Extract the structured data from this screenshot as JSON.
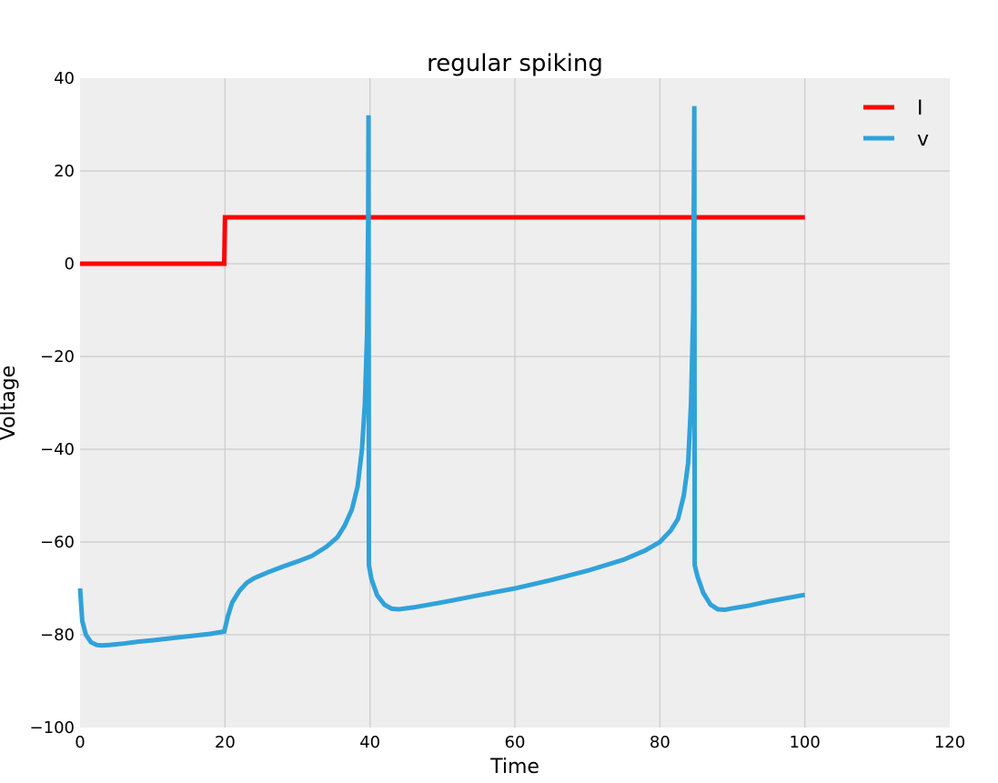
{
  "chart_data": {
    "type": "line",
    "title": "regular spiking",
    "xlabel": "Time",
    "ylabel": "Voltage",
    "xlim": [
      0,
      120
    ],
    "ylim": [
      -100,
      40
    ],
    "xticks": [
      0,
      20,
      40,
      60,
      80,
      100,
      120
    ],
    "yticks": [
      -100,
      -80,
      -60,
      -40,
      -20,
      0,
      20,
      40
    ],
    "xtick_labels": [
      "0",
      "20",
      "40",
      "60",
      "80",
      "100",
      "120"
    ],
    "ytick_labels": [
      "−100",
      "−80",
      "−60",
      "−40",
      "−20",
      "0",
      "20",
      "40"
    ],
    "grid": true,
    "legend_position": "top-right",
    "series": [
      {
        "name": "I",
        "color": "#ff0000",
        "x": [
          0,
          19.9,
          20,
          100
        ],
        "y": [
          0,
          0,
          10,
          10
        ]
      },
      {
        "name": "v",
        "color": "#30a2da",
        "x": [
          0,
          0.3,
          0.8,
          1.5,
          2.3,
          3.0,
          4,
          6,
          8,
          10,
          14,
          18,
          19.9,
          20.4,
          21,
          22,
          23,
          24,
          26,
          28,
          30,
          32,
          34,
          35.5,
          36.5,
          37.5,
          38.3,
          38.9,
          39.3,
          39.6,
          39.75,
          39.8,
          39.85,
          40.2,
          41,
          42,
          43,
          44,
          46,
          50,
          55,
          60,
          65,
          70,
          75,
          78,
          80,
          81.5,
          82.5,
          83.3,
          83.9,
          84.3,
          84.6,
          84.7,
          84.75,
          84.8,
          85.2,
          86,
          87,
          88,
          89,
          90,
          92,
          95,
          100
        ],
        "y": [
          -70,
          -77,
          -80,
          -81.6,
          -82.2,
          -82.3,
          -82.2,
          -81.9,
          -81.5,
          -81.2,
          -80.5,
          -79.8,
          -79.3,
          -76,
          -73,
          -70.5,
          -68.8,
          -67.8,
          -66.5,
          -65.3,
          -64.2,
          -63,
          -61,
          -59,
          -56.5,
          -53,
          -48,
          -40,
          -30,
          -15,
          10,
          32,
          -65,
          -68,
          -71.5,
          -73.5,
          -74.4,
          -74.5,
          -74.1,
          -73,
          -71.5,
          -70,
          -68.2,
          -66.2,
          -63.8,
          -61.8,
          -60,
          -57.5,
          -55,
          -50,
          -43,
          -30,
          -10,
          20,
          34,
          -65,
          -67.5,
          -71,
          -73.5,
          -74.5,
          -74.6,
          -74.3,
          -73.8,
          -72.8,
          -71.4
        ]
      }
    ]
  }
}
